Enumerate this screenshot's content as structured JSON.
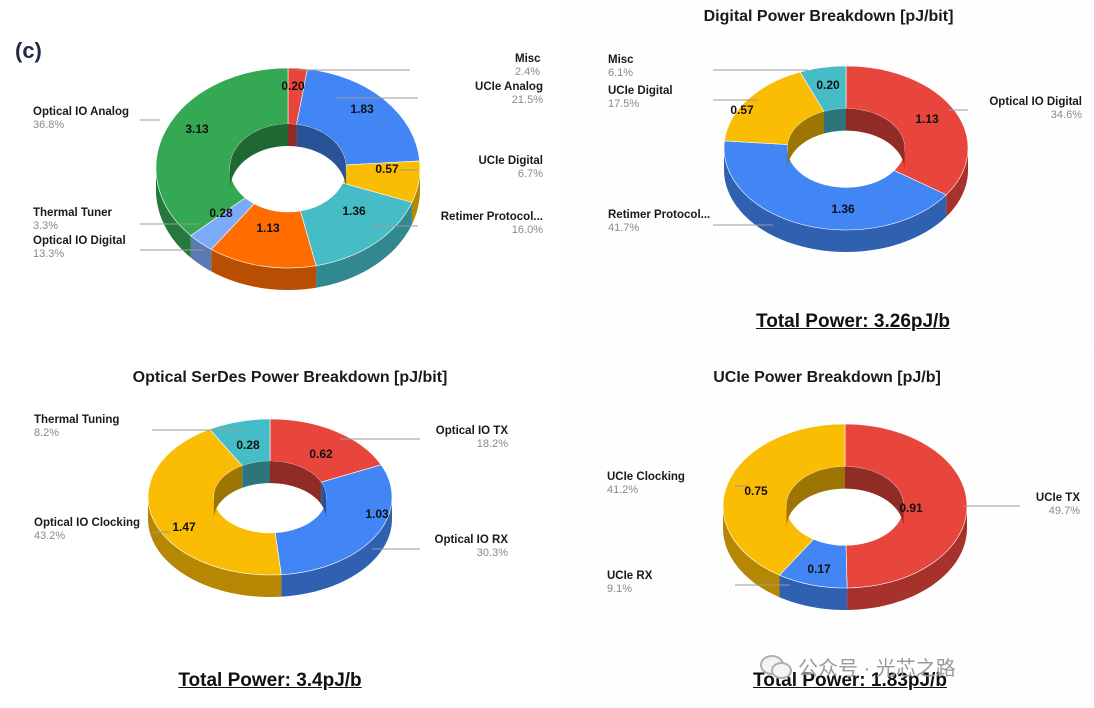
{
  "panel_label": "(c)",
  "watermark": {
    "text": "公众号 · 光芯之路",
    "icon": "wechat-icon"
  },
  "chart_data": [
    {
      "type": "pie",
      "title": "",
      "total_label": "",
      "hole_ratio": 0.44,
      "slices": [
        {
          "label": "Misc",
          "value": 0.2,
          "value_label": "0.20",
          "percent": "2.4%",
          "color": "#e8453c"
        },
        {
          "label": "UCIe Analog",
          "value": 1.83,
          "value_label": "1.83",
          "percent": "21.5%",
          "color": "#4285f4"
        },
        {
          "label": "UCIe Digital",
          "value": 0.57,
          "value_label": "0.57",
          "percent": "6.7%",
          "color": "#fbbc04"
        },
        {
          "label": "Retimer Protocol...",
          "value": 1.36,
          "value_label": "1.36",
          "percent": "16.0%",
          "color": "#46bdc6"
        },
        {
          "label": "Optical IO Digital",
          "value": 1.13,
          "value_label": "1.13",
          "percent": "13.3%",
          "color": "#ff6d01"
        },
        {
          "label": "Thermal Tuner",
          "value": 0.28,
          "value_label": "0.28",
          "percent": "3.3%",
          "color": "#7baaf7"
        },
        {
          "label": "Optical IO Analog",
          "value": 3.13,
          "value_label": "3.13",
          "percent": "36.8%",
          "color": "#34a853"
        }
      ]
    },
    {
      "type": "pie",
      "title": "Digital Power Breakdown [pJ/bit]",
      "total_label": "Total Power: 3.26pJ/b",
      "hole_ratio": 0.48,
      "slices": [
        {
          "label": "Optical IO Digital",
          "value": 1.13,
          "value_label": "1.13",
          "percent": "34.6%",
          "color": "#e8453c"
        },
        {
          "label": "Retimer Protocol...",
          "value": 1.36,
          "value_label": "1.36",
          "percent": "41.7%",
          "color": "#4285f4"
        },
        {
          "label": "UCIe Digital",
          "value": 0.57,
          "value_label": "0.57",
          "percent": "17.5%",
          "color": "#fbbc04"
        },
        {
          "label": "Misc",
          "value": 0.2,
          "value_label": "0.20",
          "percent": "6.1%",
          "color": "#46bdc6"
        }
      ]
    },
    {
      "type": "pie",
      "title": "Optical SerDes Power Breakdown [pJ/bit]",
      "total_label": "Total Power: 3.4pJ/b",
      "hole_ratio": 0.46,
      "slices": [
        {
          "label": "Optical IO TX",
          "value": 0.62,
          "value_label": "0.62",
          "percent": "18.2%",
          "color": "#e8453c"
        },
        {
          "label": "Optical IO RX",
          "value": 1.03,
          "value_label": "1.03",
          "percent": "30.3%",
          "color": "#4285f4"
        },
        {
          "label": "Optical IO Clocking",
          "value": 1.47,
          "value_label": "1.47",
          "percent": "43.2%",
          "color": "#fbbc04"
        },
        {
          "label": "Thermal Tuning",
          "value": 0.28,
          "value_label": "0.28",
          "percent": "8.2%",
          "color": "#46bdc6"
        }
      ]
    },
    {
      "type": "pie",
      "title": "UCIe Power Breakdown [pJ/b]",
      "total_label": "Total Power: 1.83pJ/b",
      "hole_ratio": 0.48,
      "slices": [
        {
          "label": "UCIe TX",
          "value": 0.91,
          "value_label": "0.91",
          "percent": "49.7%",
          "color": "#e8453c"
        },
        {
          "label": "UCIe RX",
          "value": 0.17,
          "value_label": "0.17",
          "percent": "9.1%",
          "color": "#4285f4"
        },
        {
          "label": "UCIe Clocking",
          "value": 0.75,
          "value_label": "0.75",
          "percent": "41.2%",
          "color": "#fbbc04"
        }
      ]
    }
  ]
}
